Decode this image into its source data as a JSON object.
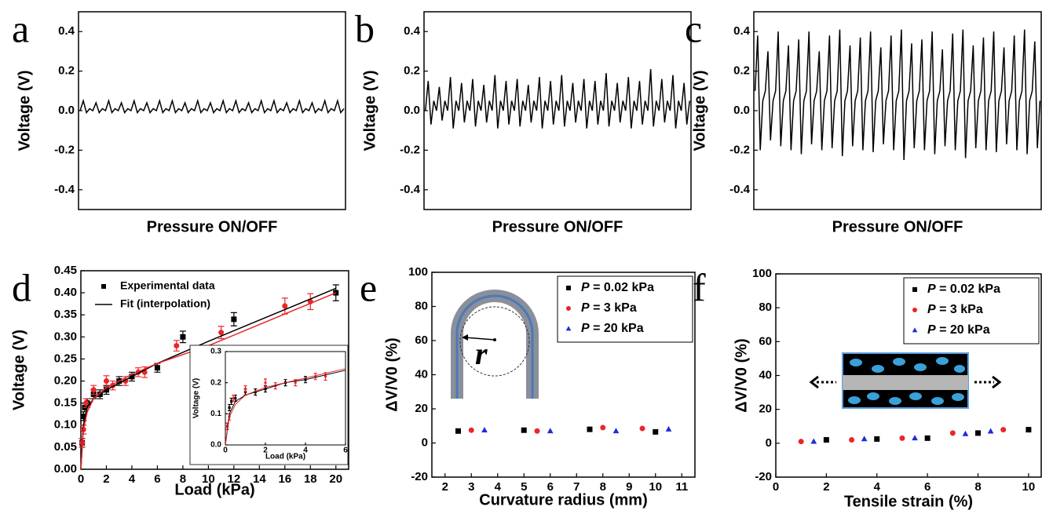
{
  "chart_data": [
    {
      "type": "line",
      "panel": "a",
      "ylabel": "Voltage (V)",
      "xlabel": "Pressure ON/OFF",
      "color": "#000000",
      "ylim": [
        -0.5,
        0.5
      ],
      "yticks": [
        -0.4,
        -0.2,
        {
          "value": 0,
          "label": "0.0"
        },
        0.2,
        0.4
      ],
      "values": [
        0,
        0.05,
        -0.01,
        0.01,
        0,
        0.04,
        -0.01,
        0.01,
        0,
        0.05,
        -0.01,
        0.01,
        0,
        0.04,
        -0.01,
        0.01,
        0,
        0.05,
        -0.01,
        0.01,
        0,
        0.04,
        -0.01,
        0.01,
        0,
        0.05,
        -0.01,
        0.01,
        0,
        0.05,
        -0.01,
        0.01,
        0,
        0.04,
        -0.01,
        0.01,
        0,
        0.05,
        -0.01,
        0.01,
        0,
        0.04,
        -0.01,
        0.01,
        0,
        0.05,
        -0.01,
        0.01,
        0,
        0.05,
        -0.01,
        0.01,
        0,
        0.04,
        -0.01,
        0.01,
        0,
        0.05,
        -0.01,
        0.01,
        0,
        0.05,
        -0.01,
        0.01,
        0,
        0.04,
        -0.01,
        0.01,
        0,
        0.05,
        -0.01,
        0.01,
        0,
        0.04,
        -0.01,
        0.01,
        0,
        0.05,
        -0.01,
        0.01,
        0,
        0.05,
        -0.01,
        0.01
      ]
    },
    {
      "type": "line",
      "panel": "b",
      "ylabel": "Voltage (V)",
      "xlabel": "Pressure ON/OFF",
      "color": "#000000",
      "ylim": [
        -0.5,
        0.5
      ],
      "yticks": [
        -0.4,
        -0.2,
        {
          "value": 0,
          "label": "0.0"
        },
        0.2,
        0.4
      ],
      "values": [
        0,
        0.15,
        -0.07,
        0.05,
        0,
        0.12,
        -0.05,
        0.05,
        0,
        0.17,
        -0.09,
        0.05,
        0,
        0.14,
        -0.06,
        0.05,
        0,
        0.16,
        -0.08,
        0.05,
        0,
        0.13,
        -0.06,
        0.05,
        0,
        0.18,
        -0.09,
        0.05,
        0,
        0.15,
        -0.07,
        0.05,
        0,
        0.16,
        -0.08,
        0.05,
        0,
        0.13,
        -0.06,
        0.05,
        0,
        0.17,
        -0.09,
        0.05,
        0,
        0.15,
        -0.07,
        0.05,
        0,
        0.18,
        -0.08,
        0.05,
        0,
        0.14,
        -0.06,
        0.05,
        0,
        0.16,
        -0.09,
        0.05,
        0,
        0.15,
        -0.07,
        0.05,
        0,
        0.19,
        -0.08,
        0.05,
        0,
        0.14,
        -0.06,
        0.05,
        0,
        0.17,
        -0.09,
        0.05,
        0,
        0.15,
        -0.07,
        0.05,
        0,
        0.21,
        -0.08,
        0.05,
        0,
        0.16,
        -0.06,
        0.05,
        0,
        0.18,
        -0.09,
        0.05,
        0,
        0.14,
        -0.07,
        0.05
      ]
    },
    {
      "type": "line",
      "panel": "c",
      "ylabel": "Voltage (V)",
      "xlabel": "Pressure ON/OFF",
      "color": "#000000",
      "ylim": [
        -0.5,
        0.5
      ],
      "yticks": [
        -0.4,
        -0.2,
        {
          "value": 0,
          "label": "0.0"
        },
        0.2,
        0.4
      ],
      "values": [
        0.1,
        0.38,
        -0.2,
        0.05,
        0.1,
        0.3,
        -0.15,
        0.05,
        0.1,
        0.4,
        -0.18,
        0.05,
        0.1,
        0.33,
        -0.2,
        0.05,
        0.1,
        0.36,
        -0.22,
        0.05,
        0.1,
        0.4,
        -0.17,
        0.05,
        0.1,
        0.3,
        -0.2,
        0.05,
        0.1,
        0.38,
        -0.19,
        0.05,
        0.1,
        0.41,
        -0.23,
        0.05,
        0.1,
        0.33,
        -0.18,
        0.05,
        0.1,
        0.37,
        -0.2,
        0.05,
        0.1,
        0.4,
        -0.21,
        0.05,
        0.1,
        0.32,
        -0.17,
        0.05,
        0.1,
        0.38,
        -0.2,
        0.05,
        0.1,
        0.41,
        -0.25,
        0.05,
        0.1,
        0.34,
        -0.19,
        0.05,
        0.1,
        0.36,
        -0.2,
        0.05,
        0.1,
        0.4,
        -0.22,
        0.05,
        0.1,
        0.31,
        -0.18,
        0.05,
        0.1,
        0.39,
        -0.2,
        0.05,
        0.1,
        0.41,
        -0.24,
        0.05,
        0.1,
        0.33,
        -0.19,
        0.05,
        0.1,
        0.37,
        -0.2,
        0.05,
        0.1,
        0.4,
        -0.21,
        0.05,
        0.1,
        0.32,
        -0.17,
        0.05,
        0.1,
        0.38,
        -0.2,
        0.05,
        0.1,
        0.41,
        -0.22,
        0.05,
        0.1,
        0.35,
        -0.19,
        0.05
      ]
    },
    {
      "type": "scatter",
      "panel": "d",
      "ylabel": "Voltage (V)",
      "xlabel": "Load (kPa)",
      "legend": "upper left",
      "xlim": [
        0,
        21
      ],
      "xticks": [
        0,
        2,
        4,
        6,
        8,
        10,
        12,
        14,
        16,
        18,
        20
      ],
      "ylim": [
        0,
        0.45
      ],
      "yticks": [
        {
          "value": 0,
          "label": "0.00"
        },
        0.05,
        {
          "value": 0.1,
          "label": "0.10"
        },
        0.15,
        {
          "value": 0.2,
          "label": "0.20"
        },
        0.25,
        {
          "value": 0.3,
          "label": "0.30"
        },
        0.35,
        {
          "value": 0.4,
          "label": "0.40"
        },
        0.45
      ],
      "series": [
        {
          "name": "Experimental data",
          "color": "#000000",
          "marker": "square",
          "x": [
            0.1,
            0.2,
            0.3,
            0.5,
            1,
            1.5,
            2,
            3,
            4,
            6,
            8,
            12,
            20
          ],
          "values": [
            0.06,
            0.12,
            0.14,
            0.15,
            0.17,
            0.17,
            0.18,
            0.2,
            0.21,
            0.23,
            0.3,
            0.34,
            0.4
          ],
          "errors": [
            0.01,
            0.01,
            0.01,
            0.01,
            0.01,
            0.01,
            0.01,
            0.01,
            0.01,
            0.01,
            0.013,
            0.015,
            0.018
          ]
        },
        {
          "color": "#e8262b",
          "marker": "circle",
          "x": [
            0.1,
            0.2,
            0.4,
            1,
            2,
            2.5,
            3.5,
            4.5,
            5,
            7.5,
            11,
            16,
            18
          ],
          "values": [
            0.06,
            0.09,
            0.15,
            0.18,
            0.2,
            0.19,
            0.2,
            0.22,
            0.22,
            0.28,
            0.31,
            0.37,
            0.38
          ],
          "errors": [
            0.01,
            0.01,
            0.01,
            0.01,
            0.012,
            0.01,
            0.01,
            0.01,
            0.012,
            0.012,
            0.014,
            0.018,
            0.018
          ]
        },
        {
          "name": "Fit (interpolation)",
          "color": "#000000",
          "mode": "line",
          "x": [
            0,
            0.2,
            0.5,
            1,
            2,
            4,
            6,
            10,
            15,
            20
          ],
          "values": [
            0,
            0.1,
            0.14,
            0.16,
            0.18,
            0.21,
            0.24,
            0.29,
            0.35,
            0.41
          ]
        },
        {
          "color": "#e8262b",
          "mode": "line",
          "x": [
            0,
            0.2,
            0.5,
            1,
            2,
            4,
            6,
            10,
            15,
            20
          ],
          "values": [
            0,
            0.09,
            0.13,
            0.16,
            0.185,
            0.215,
            0.24,
            0.28,
            0.34,
            0.4
          ]
        }
      ]
    },
    {
      "type": "scatter",
      "ylabel": "Voltage (V)",
      "xlabel": "Load (kPa)",
      "xlim": [
        0,
        6
      ],
      "xticks": [
        0,
        2,
        4,
        6
      ],
      "ylim": [
        0,
        0.3
      ],
      "yticks": [
        {
          "value": 0,
          "label": "0.0"
        },
        0.1,
        0.2,
        0.3
      ],
      "series": [
        {
          "color": "#000000",
          "marker": "square",
          "x": [
            0.1,
            0.2,
            0.3,
            0.5,
            1,
            1.5,
            2,
            3,
            4
          ],
          "values": [
            0.06,
            0.12,
            0.14,
            0.15,
            0.17,
            0.17,
            0.18,
            0.2,
            0.21
          ],
          "errors": [
            0.01,
            0.01,
            0.01,
            0.01,
            0.01,
            0.01,
            0.01,
            0.01,
            0.01
          ]
        },
        {
          "color": "#e8262b",
          "marker": "circle",
          "x": [
            0.1,
            0.2,
            0.4,
            1,
            2,
            2.5,
            3.5,
            4.5,
            5
          ],
          "values": [
            0.06,
            0.09,
            0.15,
            0.18,
            0.2,
            0.19,
            0.2,
            0.22,
            0.22
          ],
          "errors": [
            0.01,
            0.01,
            0.01,
            0.01,
            0.012,
            0.01,
            0.01,
            0.01,
            0.012
          ]
        },
        {
          "color": "#000000",
          "mode": "line",
          "x": [
            0,
            0.2,
            0.5,
            1,
            2,
            3,
            4,
            5,
            6
          ],
          "values": [
            0,
            0.1,
            0.14,
            0.16,
            0.18,
            0.2,
            0.21,
            0.225,
            0.24
          ]
        },
        {
          "color": "#e8262b",
          "mode": "line",
          "x": [
            0,
            0.2,
            0.5,
            1,
            2,
            3,
            4,
            5,
            6
          ],
          "values": [
            0,
            0.09,
            0.13,
            0.16,
            0.185,
            0.2,
            0.215,
            0.23,
            0.245
          ]
        }
      ]
    },
    {
      "type": "scatter",
      "panel": "e",
      "ylabel": "ΔV/V0 (%)",
      "xlabel": "Curvature radius (mm)",
      "legend": "upper right",
      "annotation": "r",
      "xlim": [
        1.5,
        11.5
      ],
      "xticks": [
        2,
        3,
        4,
        5,
        6,
        7,
        8,
        9,
        10,
        11
      ],
      "ylim": [
        -20,
        100
      ],
      "yticks": [
        -20,
        0,
        20,
        40,
        60,
        80,
        100
      ],
      "series": [
        {
          "name": "P = 0.02 kPa",
          "color": "#000000",
          "marker": "square",
          "x": [
            2.5,
            5,
            7.5,
            10
          ],
          "values": [
            7,
            7.5,
            8,
            6.5
          ]
        },
        {
          "name": "P = 3 kPa",
          "color": "#e8262b",
          "marker": "circle",
          "x": [
            3,
            5.5,
            8,
            9.5
          ],
          "values": [
            7.5,
            7,
            9,
            8.5
          ]
        },
        {
          "name": "P = 20 kPa",
          "color": "#1f2bd6",
          "marker": "triangle",
          "x": [
            3.5,
            6,
            8.5,
            10.5
          ],
          "values": [
            7.5,
            7,
            7,
            8
          ]
        }
      ]
    },
    {
      "type": "scatter",
      "panel": "f",
      "ylabel": "ΔV/V0 (%)",
      "xlabel": "Tensile strain (%)",
      "legend": "upper right",
      "xlim": [
        0,
        10.5
      ],
      "xticks": [
        0,
        2,
        4,
        6,
        8,
        10
      ],
      "ylim": [
        -20,
        100
      ],
      "yticks": [
        -20,
        0,
        20,
        40,
        60,
        80,
        100
      ],
      "series": [
        {
          "name": "P = 0.02 kPa",
          "color": "#000000",
          "marker": "square",
          "x": [
            2,
            4,
            6,
            8,
            10
          ],
          "values": [
            2,
            2.5,
            3,
            6,
            8
          ]
        },
        {
          "name": "P = 3 kPa",
          "color": "#e8262b",
          "marker": "circle",
          "x": [
            1,
            3,
            5,
            7,
            9
          ],
          "values": [
            1,
            2,
            3,
            6,
            8
          ]
        },
        {
          "name": "P = 20 kPa",
          "color": "#1f2bd6",
          "marker": "triangle",
          "x": [
            1.5,
            3.5,
            5.5,
            7.5,
            8.5
          ],
          "values": [
            1,
            2.5,
            3,
            5.5,
            7
          ]
        }
      ]
    }
  ]
}
